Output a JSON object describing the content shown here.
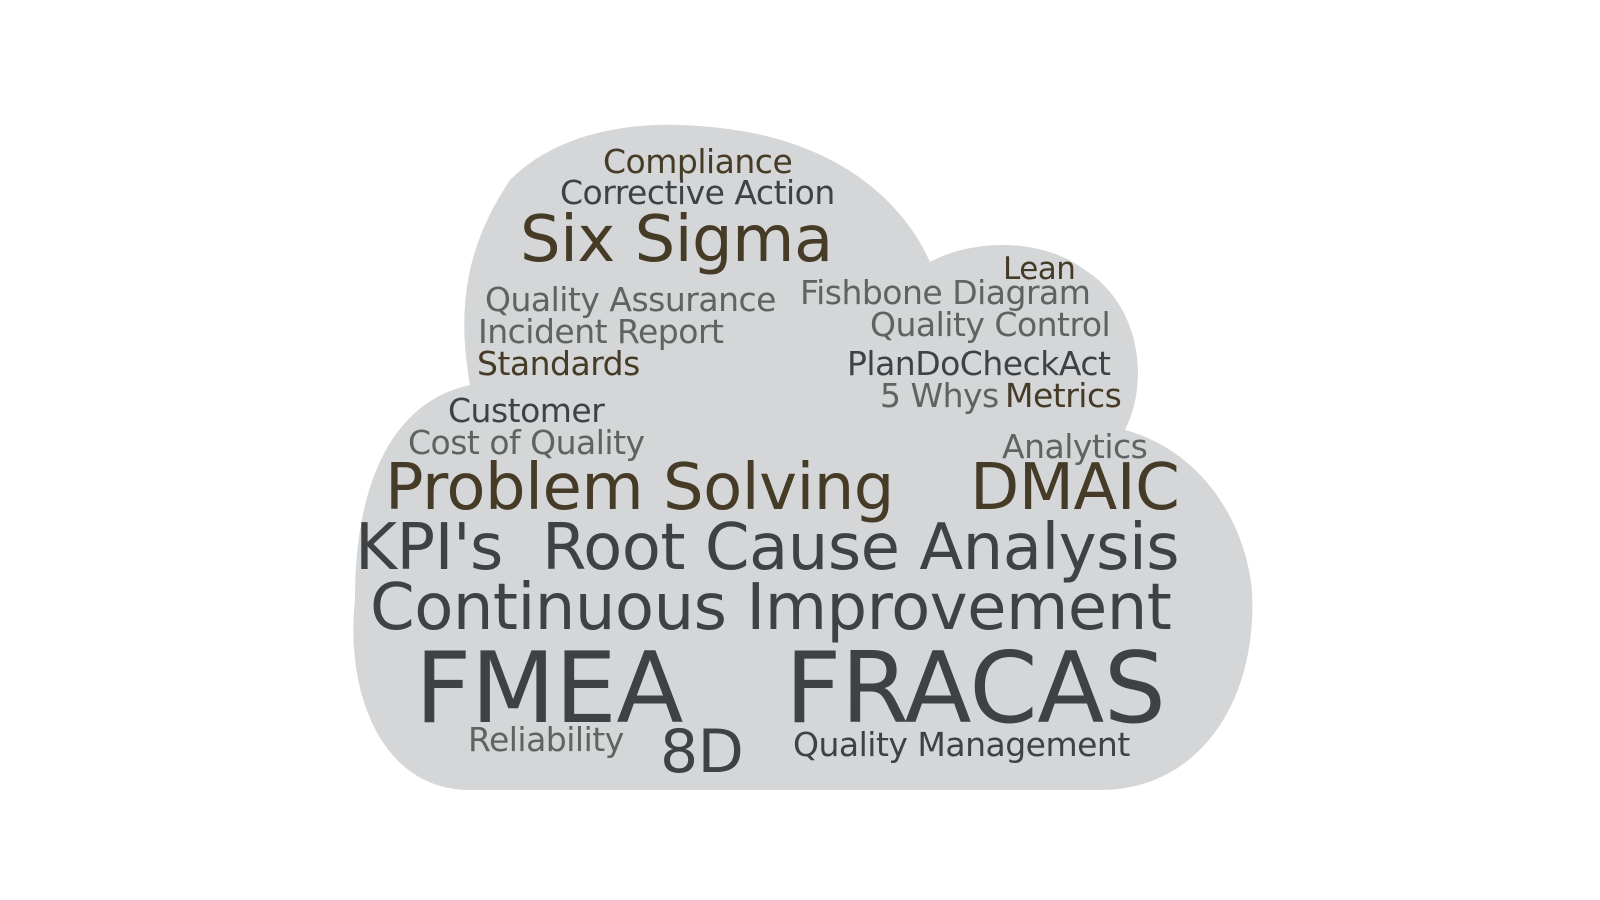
{
  "cloud": {
    "background_color": "#d4d6d7",
    "page_color": "#ffffff"
  },
  "palette": {
    "dark": "#3f4244",
    "brown": "#463b27",
    "grey": "#5f6361"
  },
  "words": {
    "compliance": "Compliance",
    "corrective_action": "Corrective Action",
    "six_sigma": "Six Sigma",
    "lean": "Lean",
    "fishbone_diagram": "Fishbone Diagram",
    "quality_assurance": "Quality Assurance",
    "quality_control": "Quality Control",
    "incident_report": "Incident Report",
    "standards": "Standards",
    "plan_do_check_act": "PlanDoCheckAct",
    "five_whys": "5 Whys",
    "metrics": "Metrics",
    "customer": "Customer",
    "cost_of_quality": "Cost of Quality",
    "analytics": "Analytics",
    "problem_solving": "Problem Solving",
    "dmaic": "DMAIC",
    "kpis": "KPI's",
    "root_cause_analysis": "Root Cause Analysis",
    "continuous_improvement": "Continuous Improvement",
    "fmea": "FMEA",
    "fracas": "FRACAS",
    "reliability": "Reliability",
    "eight_d": "8D",
    "quality_management": "Quality Management"
  }
}
